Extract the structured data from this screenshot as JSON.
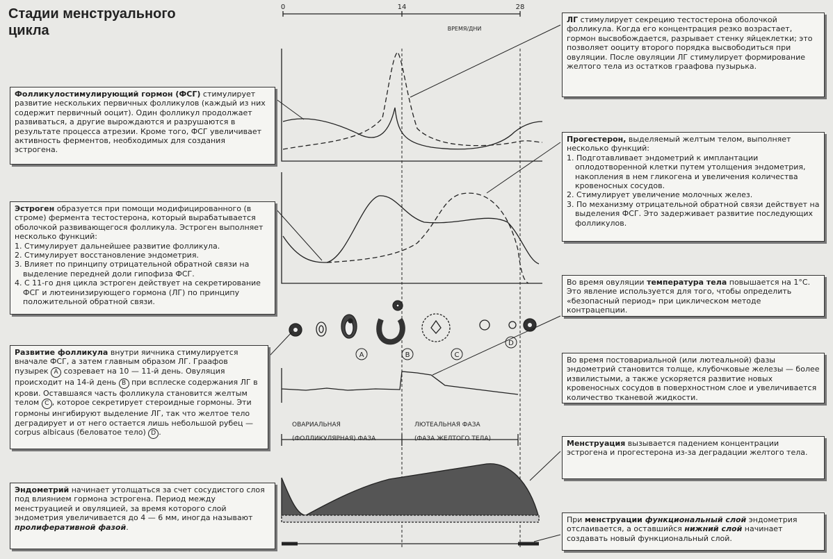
{
  "title": "Стадии менструального цикла",
  "timeline": {
    "ticks": [
      "0",
      "14",
      "28"
    ],
    "label": "ВРЕМЯ/ДНИ"
  },
  "follicle_labels": [
    "A",
    "B",
    "C",
    "D"
  ],
  "phases": [
    "ОВАРИАЛЬНАЯ",
    "(ФОЛЛИКУЛЯРНАЯ) ФАЗА",
    "ЛЮТЕАЛЬНАЯ ФАЗА",
    "(ФАЗА ЖЕЛТОГО ТЕЛА)"
  ],
  "boxes": [
    {
      "segments": [
        {
          "text": "Фолликулостимулирующий гормон (ФСГ)",
          "style": "b"
        },
        {
          "text": " стимулирует развитие нескольких первичных фолликулов (каждый из них содержит первичный ооцит). Один фолликул продолжает развиваться, а другие вырождаются и разрушаются в результате процесса атрезии. Кроме того, ФСГ увеличивает активность ферментов, необходимых для создания эстрогена."
        }
      ]
    },
    {
      "segments": [
        {
          "text": "Эстроген",
          "style": "b"
        },
        {
          "text": " образуется при помощи модифицированного (в строме) фермента тестостерона, который вырабатывается оболочкой развивающегося фолликула. Эстроген выполняет несколько функций:"
        }
      ],
      "items": [
        "1. Стимулирует дальнейшее развитие фолликула.",
        "2. Стимулирует восстановление эндометрия.",
        "3. Влияет по принципу отрицательной обратной связи на выделение передней доли гипофиза ФСГ.",
        "4. С 11-го дня цикла эстроген действует на секретирование ФСГ и лютеинизирующего гормона (ЛГ) по принципу положительной обратной связи."
      ]
    },
    {
      "segments": [
        {
          "text": "Развитие фолликула",
          "style": "b"
        },
        {
          "text": " внутри яичника стимулируется вначале ФСГ, а затем главным образом ЛГ. Граафов пузырек "
        },
        {
          "text": "A",
          "style": "c"
        },
        {
          "text": " созревает на 10 — 11-й день. Овуляция происходит на 14-й день "
        },
        {
          "text": "B",
          "style": "c"
        },
        {
          "text": " при всплеске содержания ЛГ в крови. Оставшаяся часть фолликула становится желтым телом "
        },
        {
          "text": "C",
          "style": "c"
        },
        {
          "text": ", которое секретирует стероидные гормоны. Эти гормоны ингибируют выделение ЛГ, так что желтое тело деградирует и от него остается лишь небольшой рубец — corpus albicaus (беловатое тело) "
        },
        {
          "text": "D",
          "style": "c"
        },
        {
          "text": "."
        }
      ]
    },
    {
      "segments": [
        {
          "text": "Эндометрий",
          "style": "b"
        },
        {
          "text": " начинает утолщаться за счет сосудистого слоя под влиянием гормона эстрогена. Период между менструацией и овуляцией, за время которого слой эндометрия увеличивается до 4 — 6 мм, иногда называют "
        },
        {
          "text": "пролиферативной фазой",
          "style": "bi"
        },
        {
          "text": "."
        }
      ]
    },
    {
      "segments": [
        {
          "text": "ЛГ",
          "style": "b"
        },
        {
          "text": " стимулирует секрецию тестостерона оболочкой фолликула. Когда его концентрация резко возрастает, гормон высвобождается, разрывает стенку яйцеклетки; это позволяет ооциту второго порядка высвободиться при овуляции. После овуляции ЛГ стимулирует формирование желтого тела из остатков граафова пузырька."
        }
      ]
    },
    {
      "segments": [
        {
          "text": "Прогестерон,",
          "style": "b"
        },
        {
          "text": " выделяемый желтым телом, выполняет несколько функций:"
        }
      ],
      "items": [
        "1. Подготавливает эндометрий к имплантации оплодотворенной клетки путем утолщения эндометрия, накопления в нем гликогена и увеличения количества кровеносных сосудов.",
        "2. Стимулирует увеличение молочных желез.",
        "3. По механизму отрицательной обратной связи действует на выделения ФСГ. Это задерживает развитие последующих фолликулов."
      ]
    },
    {
      "segments": [
        {
          "text": "Во время овуляции "
        },
        {
          "text": "температура тела",
          "style": "b"
        },
        {
          "text": " повышается на 1°С. Это явление используется для того, чтобы определить «безопасный период» при циклическом методе контрацепции."
        }
      ]
    },
    {
      "segments": [
        {
          "text": "Во время постовариальной (или лютеальной) фазы эндометрий становится толще, клубочковые железы — более извилистыми, а также ускоряется развитие новых кровеносных сосудов в поверхностном слое и увеличивается количество тканевой жидкости."
        }
      ]
    },
    {
      "segments": [
        {
          "text": "Менструация",
          "style": "b"
        },
        {
          "text": " вызывается падением концентрации эстрогена и прогестерона из-за деградации желтого тела."
        }
      ]
    },
    {
      "segments": [
        {
          "text": "При "
        },
        {
          "text": "менструации ",
          "style": "b"
        },
        {
          "text": "функциональный слой",
          "style": "bi"
        },
        {
          "text": " эндометрия отслаивается, а оставшийся "
        },
        {
          "text": "нижний слой",
          "style": "bi"
        },
        {
          "text": " начинает создавать новый функциональный слой."
        }
      ]
    }
  ]
}
